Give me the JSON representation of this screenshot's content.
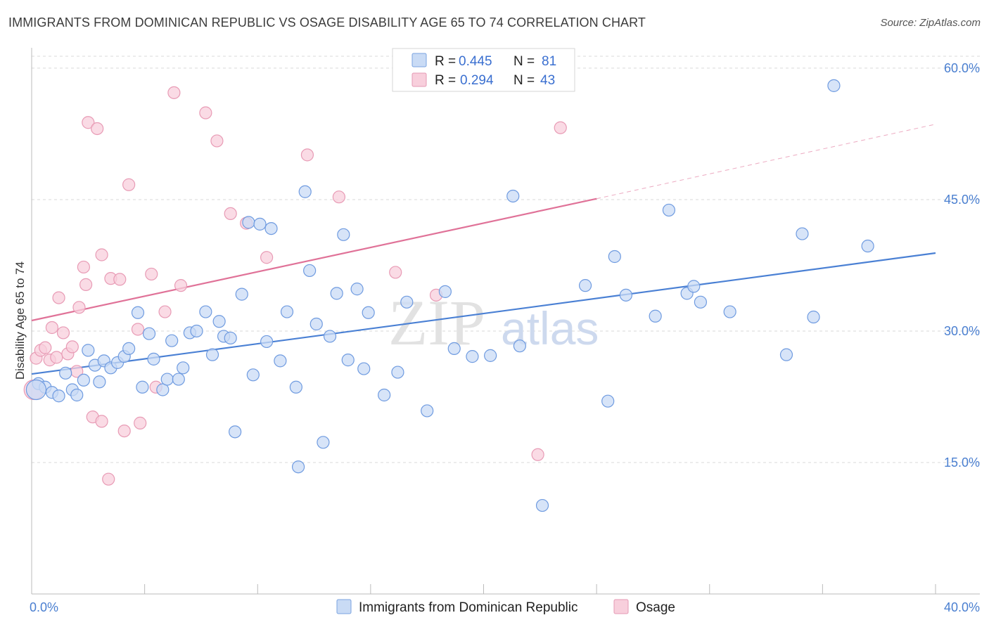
{
  "title": "IMMIGRANTS FROM DOMINICAN REPUBLIC VS OSAGE DISABILITY AGE 65 TO 74 CORRELATION CHART",
  "source": "Source: ZipAtlas.com",
  "watermark": {
    "part1": "ZIP",
    "part2": "atlas"
  },
  "colors": {
    "blue": "#4a80d4",
    "blue_fill": "#c9dbf5",
    "pink": "#e07298",
    "pink_fill": "#f8cfdc",
    "grid": "#d9d9d9",
    "tick": "#4a7fd0"
  },
  "legend": {
    "rows": [
      {
        "r_label": "R =",
        "r_value": "0.445",
        "n_label": "N =",
        "n_value": "81"
      },
      {
        "r_label": "R =",
        "r_value": "0.294",
        "n_label": "N =",
        "n_value": "43"
      }
    ]
  },
  "bottom_legend": [
    "Immigrants from Dominican Republic",
    "Osage"
  ],
  "chart_data": {
    "type": "scatter",
    "ylabel": "Disability Age 65 to 74",
    "xlim": [
      0,
      40
    ],
    "ylim": [
      0,
      62
    ],
    "x_tick_labels": [
      {
        "value": 0,
        "label": "0.0%"
      },
      {
        "value": 40,
        "label": "40.0%"
      }
    ],
    "y_ticks": [
      {
        "value": 15,
        "label": "15.0%"
      },
      {
        "value": 30,
        "label": "30.0%"
      },
      {
        "value": 45,
        "label": "45.0%"
      },
      {
        "value": 60,
        "label": "60.0%"
      }
    ],
    "grid": true,
    "legend_placement": "top-center",
    "series": [
      {
        "name": "Immigrants from Dominican Republic",
        "color": "#4a80d4",
        "trend": {
          "x0": 0,
          "y0": 25.1,
          "x1": 40,
          "y1": 38.9
        },
        "points": [
          [
            0.3,
            24.0
          ],
          [
            0.6,
            23.6
          ],
          [
            0.9,
            23.0
          ],
          [
            1.2,
            22.6
          ],
          [
            1.5,
            25.2
          ],
          [
            1.8,
            23.3
          ],
          [
            2.0,
            22.7
          ],
          [
            2.3,
            24.4
          ],
          [
            2.5,
            27.8
          ],
          [
            2.8,
            26.1
          ],
          [
            3.0,
            24.2
          ],
          [
            3.2,
            26.6
          ],
          [
            3.5,
            25.8
          ],
          [
            3.8,
            26.4
          ],
          [
            4.1,
            27.1
          ],
          [
            4.3,
            28.0
          ],
          [
            4.7,
            32.1
          ],
          [
            4.9,
            23.6
          ],
          [
            5.2,
            29.7
          ],
          [
            5.4,
            26.8
          ],
          [
            5.8,
            23.3
          ],
          [
            6.0,
            24.5
          ],
          [
            6.2,
            28.9
          ],
          [
            6.5,
            24.5
          ],
          [
            6.7,
            25.8
          ],
          [
            7.0,
            29.8
          ],
          [
            7.3,
            30.0
          ],
          [
            7.7,
            32.2
          ],
          [
            8.0,
            27.3
          ],
          [
            8.3,
            31.1
          ],
          [
            8.5,
            29.4
          ],
          [
            8.8,
            29.2
          ],
          [
            9.0,
            18.5
          ],
          [
            9.3,
            34.2
          ],
          [
            9.6,
            42.4
          ],
          [
            9.8,
            25.0
          ],
          [
            10.1,
            42.2
          ],
          [
            10.4,
            28.8
          ],
          [
            10.6,
            41.7
          ],
          [
            11.0,
            26.6
          ],
          [
            11.3,
            32.2
          ],
          [
            11.7,
            23.6
          ],
          [
            11.8,
            14.5
          ],
          [
            12.1,
            45.9
          ],
          [
            12.3,
            36.9
          ],
          [
            12.6,
            30.8
          ],
          [
            12.9,
            17.3
          ],
          [
            13.2,
            29.4
          ],
          [
            13.5,
            34.3
          ],
          [
            13.8,
            41.0
          ],
          [
            14.0,
            26.7
          ],
          [
            14.4,
            34.8
          ],
          [
            14.7,
            25.7
          ],
          [
            14.9,
            32.1
          ],
          [
            15.6,
            22.7
          ],
          [
            16.2,
            25.3
          ],
          [
            16.6,
            33.3
          ],
          [
            17.5,
            20.9
          ],
          [
            18.3,
            34.5
          ],
          [
            18.7,
            28.0
          ],
          [
            19.5,
            27.1
          ],
          [
            20.3,
            27.2
          ],
          [
            21.3,
            45.4
          ],
          [
            21.6,
            28.3
          ],
          [
            22.6,
            10.1
          ],
          [
            24.5,
            35.2
          ],
          [
            25.5,
            22.0
          ],
          [
            25.8,
            38.5
          ],
          [
            26.3,
            34.1
          ],
          [
            27.6,
            31.7
          ],
          [
            28.2,
            43.8
          ],
          [
            29.0,
            34.3
          ],
          [
            29.3,
            35.1
          ],
          [
            29.6,
            33.3
          ],
          [
            30.9,
            32.2
          ],
          [
            33.4,
            27.3
          ],
          [
            34.1,
            41.1
          ],
          [
            34.6,
            31.6
          ],
          [
            35.5,
            58.0
          ],
          [
            37.0,
            39.7
          ],
          [
            0.2,
            23.3
          ]
        ]
      },
      {
        "name": "Osage",
        "color": "#e07298",
        "trend": {
          "x0": 0,
          "y0": 31.2,
          "x1": 25.0,
          "y1": 45.1,
          "x2": 40,
          "y2": 53.6
        },
        "points": [
          [
            0.2,
            26.9
          ],
          [
            0.4,
            27.8
          ],
          [
            0.6,
            28.1
          ],
          [
            0.8,
            26.7
          ],
          [
            0.9,
            30.4
          ],
          [
            1.1,
            27.0
          ],
          [
            1.2,
            33.8
          ],
          [
            1.4,
            29.8
          ],
          [
            1.6,
            27.4
          ],
          [
            1.8,
            28.2
          ],
          [
            2.0,
            25.4
          ],
          [
            2.1,
            32.7
          ],
          [
            2.3,
            37.3
          ],
          [
            2.4,
            35.3
          ],
          [
            2.5,
            53.8
          ],
          [
            2.7,
            20.2
          ],
          [
            2.9,
            53.1
          ],
          [
            3.1,
            19.7
          ],
          [
            3.1,
            38.7
          ],
          [
            3.4,
            13.1
          ],
          [
            3.5,
            36.0
          ],
          [
            3.9,
            35.9
          ],
          [
            4.1,
            18.6
          ],
          [
            4.3,
            46.7
          ],
          [
            4.7,
            30.2
          ],
          [
            4.8,
            19.5
          ],
          [
            5.3,
            36.5
          ],
          [
            5.5,
            23.6
          ],
          [
            5.9,
            32.2
          ],
          [
            6.3,
            57.2
          ],
          [
            6.6,
            35.2
          ],
          [
            7.7,
            54.9
          ],
          [
            8.2,
            51.7
          ],
          [
            8.8,
            43.4
          ],
          [
            9.5,
            42.3
          ],
          [
            10.4,
            38.4
          ],
          [
            12.2,
            50.1
          ],
          [
            13.6,
            45.3
          ],
          [
            16.1,
            36.7
          ],
          [
            17.9,
            34.1
          ],
          [
            22.4,
            15.9
          ],
          [
            23.4,
            53.2
          ],
          [
            0.1,
            23.3
          ]
        ]
      }
    ]
  }
}
